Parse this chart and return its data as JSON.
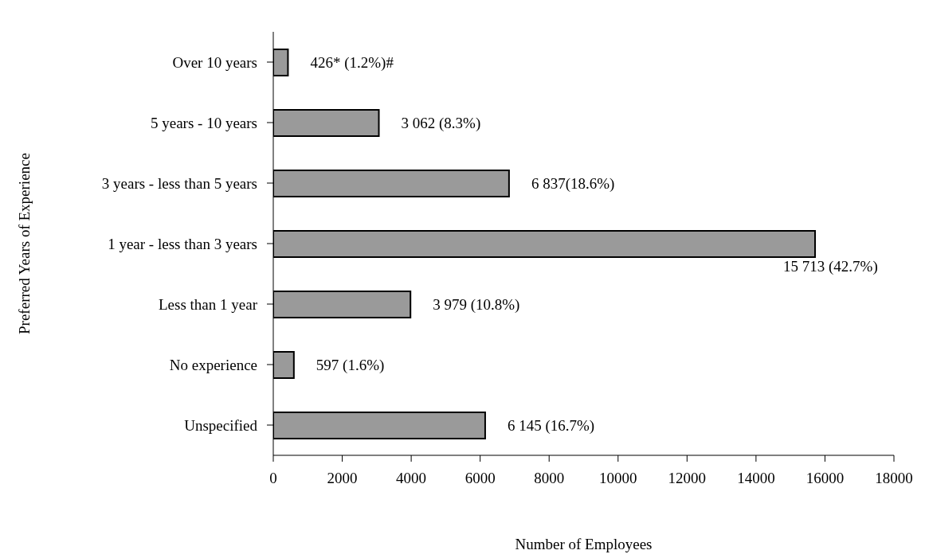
{
  "chart_data": {
    "type": "bar",
    "orientation": "horizontal",
    "xlabel": "Number of Employees",
    "ylabel": "Preferred Years of Experience",
    "categories": [
      "Over 10 years",
      "5 years -  10 years",
      "3 years - less than 5 years",
      "1 year - less than 3 years",
      "Less than 1 year",
      "No experience",
      "Unspecified"
    ],
    "values": [
      426,
      3062,
      6837,
      15713,
      3979,
      597,
      6145
    ],
    "value_labels": [
      "426* (1.2%)#",
      "3 062 (8.3%)",
      "6 837(18.6%)",
      "15 713 (42.7%)",
      "3 979 (10.8%)",
      "597 (1.6%)",
      "6 145 (16.7%)"
    ],
    "color": "#9a9a9a",
    "xlim": [
      0,
      18000
    ],
    "xticks": [
      0,
      2000,
      4000,
      6000,
      8000,
      10000,
      12000,
      14000,
      16000,
      18000
    ],
    "grid": false
  }
}
